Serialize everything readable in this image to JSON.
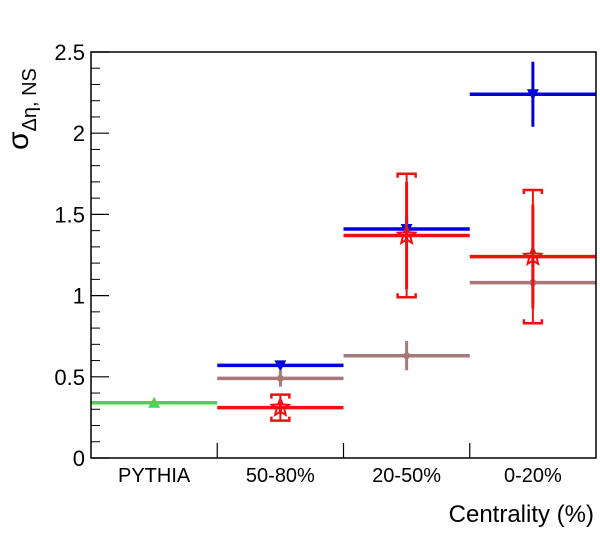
{
  "chart_data": {
    "type": "scatter",
    "xlabel": "Centrality (%)",
    "ylabel": "σ",
    "ylabel_sub": "Δη, NS",
    "categories": [
      "PYTHIA",
      "50-80%",
      "20-50%",
      "0-20%"
    ],
    "ylim": [
      0,
      2.5
    ],
    "yticks": [
      "0",
      "0.5",
      "1",
      "1.5",
      "2",
      "2.5"
    ],
    "yticks_values": [
      0,
      0.5,
      1,
      1.5,
      2,
      2.5
    ],
    "grid": false,
    "series": [
      {
        "color": "#55cc55",
        "marker": "triangle-up",
        "points": [
          {
            "cat": 0,
            "y": 0.34,
            "err": 0
          }
        ]
      },
      {
        "color": "#0000dd",
        "marker": "triangle-down",
        "points": [
          {
            "cat": 1,
            "y": 0.57,
            "err": 0
          },
          {
            "cat": 2,
            "y": 1.41,
            "err": 0.08
          },
          {
            "cat": 3,
            "y": 2.24,
            "err": 0.2
          }
        ]
      },
      {
        "color": "#a87878",
        "marker": "circle",
        "points": [
          {
            "cat": 1,
            "y": 0.49,
            "err": 0.05
          },
          {
            "cat": 2,
            "y": 0.63,
            "err": 0.09
          },
          {
            "cat": 3,
            "y": 1.08,
            "err": 0.13
          }
        ]
      },
      {
        "color": "#ee1111",
        "marker": "star",
        "points": [
          {
            "cat": 1,
            "y": 0.31,
            "err": 0.04,
            "sys": 0.08
          },
          {
            "cat": 2,
            "y": 1.37,
            "err": 0.33,
            "sys": 0.38
          },
          {
            "cat": 3,
            "y": 1.24,
            "err": 0.32,
            "sys": 0.41
          }
        ]
      }
    ]
  }
}
